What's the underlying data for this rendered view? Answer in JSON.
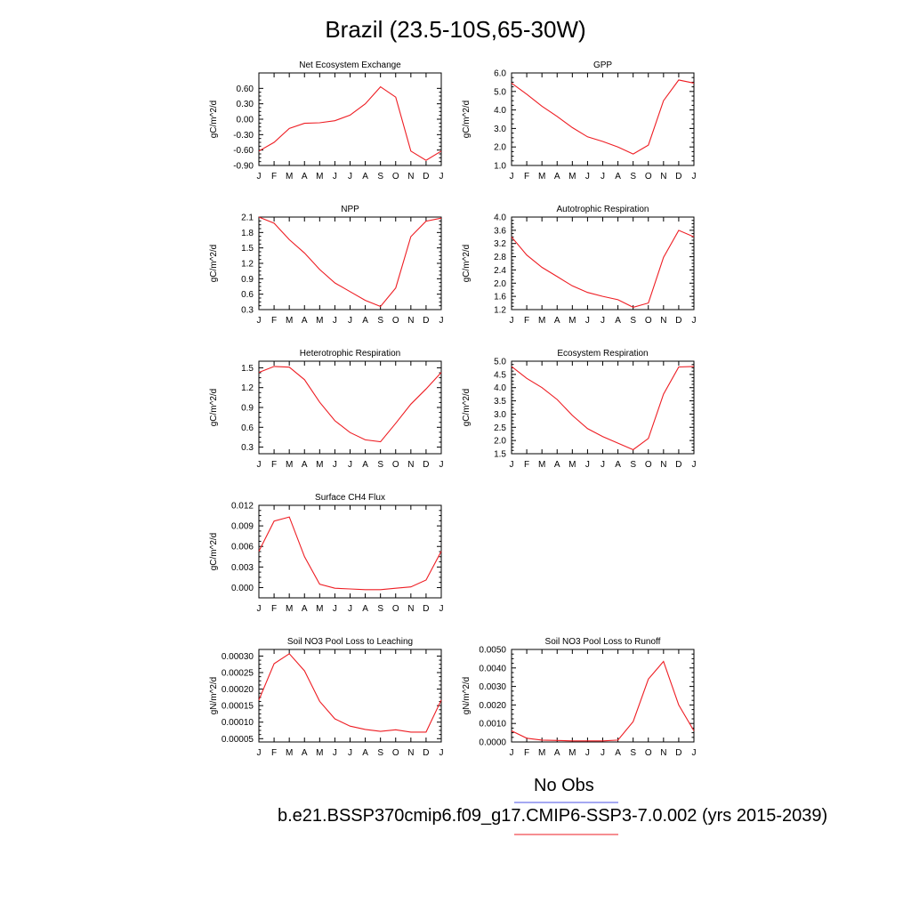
{
  "title": "Brazil (23.5-10S,65-30W)",
  "legend": {
    "obs_label": "No Obs",
    "obs_color": "#4b50e6",
    "case_label": "b.e21.BSSP370cmip6.f09_g17.CMIP6-SSP3-7.0.002 (yrs 2015-2039)",
    "case_color": "#ee1d23"
  },
  "chart_data": [
    {
      "type": "line",
      "title": "Net Ecosystem Exchange",
      "ylabel": "gC/m^2/d",
      "x": [
        "J",
        "F",
        "M",
        "A",
        "M",
        "J",
        "J",
        "A",
        "S",
        "O",
        "N",
        "D",
        "J"
      ],
      "yticks": [
        "-0.90",
        "-0.60",
        "-0.30",
        "0.00",
        "0.30",
        "0.60"
      ],
      "ylim": [
        -0.9,
        0.9
      ],
      "series": [
        {
          "values": [
            -0.62,
            -0.45,
            -0.18,
            -0.08,
            -0.07,
            -0.03,
            0.08,
            0.3,
            0.63,
            0.43,
            -0.62,
            -0.8,
            -0.62
          ]
        }
      ]
    },
    {
      "type": "line",
      "title": "GPP",
      "ylabel": "gC/m^2/d",
      "x": [
        "J",
        "F",
        "M",
        "A",
        "M",
        "J",
        "J",
        "A",
        "S",
        "O",
        "N",
        "D",
        "J"
      ],
      "yticks": [
        "1.0",
        "2.0",
        "3.0",
        "4.0",
        "5.0",
        "6.0"
      ],
      "ylim": [
        1.0,
        6.0
      ],
      "series": [
        {
          "values": [
            5.45,
            4.85,
            4.2,
            3.65,
            3.05,
            2.55,
            2.3,
            2.0,
            1.62,
            2.1,
            4.5,
            5.62,
            5.45
          ]
        }
      ]
    },
    {
      "type": "line",
      "title": "NPP",
      "ylabel": "gC/m^2/d",
      "x": [
        "J",
        "F",
        "M",
        "A",
        "M",
        "J",
        "J",
        "A",
        "S",
        "O",
        "N",
        "D",
        "J"
      ],
      "yticks": [
        "0.3",
        "0.6",
        "0.9",
        "1.2",
        "1.5",
        "1.8",
        "2.1"
      ],
      "ylim": [
        0.3,
        2.1
      ],
      "series": [
        {
          "values": [
            2.1,
            1.98,
            1.66,
            1.4,
            1.08,
            0.82,
            0.65,
            0.48,
            0.36,
            0.72,
            1.72,
            2.02,
            2.08
          ]
        }
      ]
    },
    {
      "type": "line",
      "title": "Autotrophic Respiration",
      "ylabel": "gC/m^2/d",
      "x": [
        "J",
        "F",
        "M",
        "A",
        "M",
        "J",
        "J",
        "A",
        "S",
        "O",
        "N",
        "D",
        "J"
      ],
      "yticks": [
        "1.2",
        "1.6",
        "2.0",
        "2.4",
        "2.8",
        "3.2",
        "3.6",
        "4.0"
      ],
      "ylim": [
        1.2,
        4.0
      ],
      "series": [
        {
          "values": [
            3.4,
            2.85,
            2.48,
            2.2,
            1.92,
            1.72,
            1.6,
            1.5,
            1.27,
            1.4,
            2.78,
            3.6,
            3.4
          ]
        }
      ]
    },
    {
      "type": "line",
      "title": "Heterotrophic Respiration",
      "ylabel": "gC/m^2/d",
      "x": [
        "J",
        "F",
        "M",
        "A",
        "M",
        "J",
        "J",
        "A",
        "S",
        "O",
        "N",
        "D",
        "J"
      ],
      "yticks": [
        "0.3",
        "0.6",
        "0.9",
        "1.2",
        "1.5"
      ],
      "ylim": [
        0.2,
        1.6
      ],
      "series": [
        {
          "values": [
            1.43,
            1.52,
            1.51,
            1.32,
            0.98,
            0.7,
            0.52,
            0.41,
            0.38,
            0.66,
            0.95,
            1.18,
            1.43
          ]
        }
      ]
    },
    {
      "type": "line",
      "title": "Ecosystem Respiration",
      "ylabel": "gC/m^2/d",
      "x": [
        "J",
        "F",
        "M",
        "A",
        "M",
        "J",
        "J",
        "A",
        "S",
        "O",
        "N",
        "D",
        "J"
      ],
      "yticks": [
        "1.5",
        "2.0",
        "2.5",
        "3.0",
        "3.5",
        "4.0",
        "4.5",
        "5.0"
      ],
      "ylim": [
        1.5,
        5.0
      ],
      "series": [
        {
          "values": [
            4.8,
            4.35,
            4.0,
            3.55,
            2.95,
            2.45,
            2.15,
            1.9,
            1.65,
            2.08,
            3.75,
            4.78,
            4.8
          ]
        }
      ]
    },
    {
      "type": "line",
      "title": "Surface CH4 Flux",
      "ylabel": "gC/m^2/d",
      "x": [
        "J",
        "F",
        "M",
        "A",
        "M",
        "J",
        "J",
        "A",
        "S",
        "O",
        "N",
        "D",
        "J"
      ],
      "yticks": [
        "0.000",
        "0.003",
        "0.006",
        "0.009",
        "0.012"
      ],
      "ylim": [
        -0.0015,
        0.012
      ],
      "series": [
        {
          "values": [
            0.0053,
            0.0097,
            0.0103,
            0.0045,
            0.0005,
            -0.0001,
            -0.0002,
            -0.0003,
            -0.0003,
            -0.0001,
            0.0001,
            0.0011,
            0.0053
          ]
        }
      ]
    },
    {
      "type": "line",
      "title": "Soil NO3 Pool Loss to Leaching",
      "ylabel": "gN/m^2/d",
      "x": [
        "J",
        "F",
        "M",
        "A",
        "M",
        "J",
        "J",
        "A",
        "S",
        "O",
        "N",
        "D",
        "J"
      ],
      "yticks": [
        "0.00005",
        "0.00010",
        "0.00015",
        "0.00020",
        "0.00025",
        "0.00030"
      ],
      "ylim": [
        4e-05,
        0.00032
      ],
      "series": [
        {
          "values": [
            0.000167,
            0.000277,
            0.000307,
            0.000255,
            0.000163,
            0.00011,
            8.8e-05,
            7.8e-05,
            7.2e-05,
            7.7e-05,
            7e-05,
            7e-05,
            0.000167
          ]
        }
      ]
    },
    {
      "type": "line",
      "title": "Soil NO3 Pool Loss to Runoff",
      "ylabel": "gN/m^2/d",
      "x": [
        "J",
        "F",
        "M",
        "A",
        "M",
        "J",
        "J",
        "A",
        "S",
        "O",
        "N",
        "D",
        "J"
      ],
      "yticks": [
        "0.0000",
        "0.0010",
        "0.0020",
        "0.0030",
        "0.0040",
        "0.0050"
      ],
      "ylim": [
        0.0,
        0.005
      ],
      "series": [
        {
          "values": [
            0.0006,
            0.0002,
            0.0001,
            8e-05,
            6e-05,
            6e-05,
            6e-05,
            0.0001,
            0.0011,
            0.0034,
            0.00435,
            0.002,
            0.0006
          ]
        }
      ]
    }
  ]
}
